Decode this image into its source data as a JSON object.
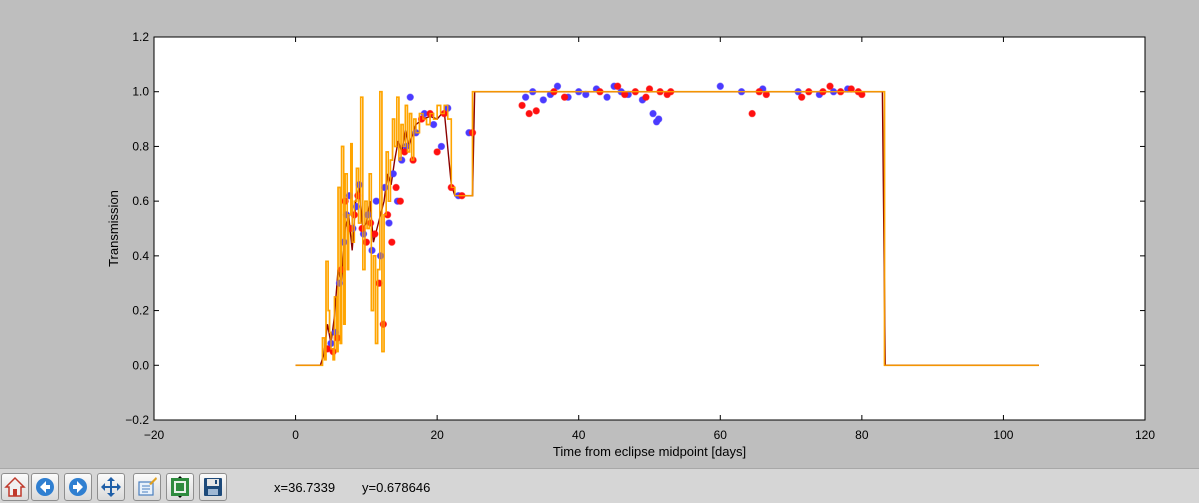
{
  "toolbar": {
    "buttons": [
      {
        "name": "home-button",
        "icon": "home-icon"
      },
      {
        "name": "back-button",
        "icon": "back-arrow-icon"
      },
      {
        "name": "forward-button",
        "icon": "forward-arrow-icon"
      },
      {
        "name": "pan-button",
        "icon": "pan-arrows-icon"
      },
      {
        "name": "zoom-button",
        "icon": "zoom-rectangle-icon"
      },
      {
        "name": "subplots-button",
        "icon": "subplots-icon"
      },
      {
        "name": "save-button",
        "icon": "floppy-disk-icon"
      }
    ],
    "x_readout": "x=36.7339",
    "y_readout": "y=0.678646"
  },
  "chart_data": {
    "type": "line",
    "title": "",
    "xlabel": "Time from eclipse midpoint [days]",
    "ylabel": "Transmission",
    "xlim": [
      -20,
      120
    ],
    "ylim": [
      -0.2,
      1.2
    ],
    "xticks": [
      "−20",
      "0",
      "20",
      "40",
      "60",
      "80",
      "100",
      "120"
    ],
    "yticks": [
      "−0.2",
      "0.0",
      "0.2",
      "0.4",
      "0.6",
      "0.8",
      "1.0",
      "1.2"
    ],
    "grid": false,
    "legend": "none",
    "colors": {
      "model_line": "#ffa500",
      "model_fit": "#8b0000",
      "blue_points": "#4b3bff",
      "red_points": "#ff1010",
      "axes": "#000000",
      "background": "#ffffff"
    },
    "series": [
      {
        "color": "#ffa500",
        "style": "step-line",
        "x": [
          0,
          3.5,
          3.8,
          4.1,
          4.3,
          4.6,
          4.8,
          5.0,
          5.3,
          5.5,
          5.8,
          6.0,
          6.3,
          6.5,
          6.8,
          7.0,
          7.3,
          7.5,
          7.8,
          8.0,
          8.3,
          8.6,
          8.9,
          9.2,
          9.5,
          9.8,
          10.1,
          10.4,
          10.7,
          11.0,
          11.3,
          11.6,
          11.9,
          12.2,
          12.5,
          12.8,
          13.1,
          13.4,
          13.7,
          14.0,
          14.3,
          14.6,
          14.9,
          15.2,
          15.5,
          15.8,
          16.1,
          16.4,
          16.7,
          17.0,
          17.5,
          18.0,
          18.5,
          19.0,
          19.5,
          20.0,
          20.5,
          21.0,
          21.5,
          22.0,
          22.5,
          23.0,
          23.5,
          24.0,
          24.5,
          25.0,
          25.3,
          26.0,
          83.0,
          83.2,
          105.0
        ],
        "y": [
          0.0,
          0.0,
          0.1,
          0.02,
          0.38,
          0.2,
          0.12,
          0.06,
          0.02,
          0.25,
          0.05,
          0.65,
          0.08,
          0.8,
          0.15,
          0.7,
          0.35,
          0.55,
          0.81,
          0.45,
          0.6,
          0.72,
          0.52,
          0.98,
          0.35,
          0.6,
          0.5,
          0.7,
          0.2,
          0.4,
          0.08,
          0.35,
          1.0,
          0.05,
          0.55,
          0.78,
          0.6,
          0.75,
          0.9,
          0.8,
          0.98,
          0.75,
          0.88,
          0.8,
          0.95,
          0.78,
          0.92,
          0.75,
          0.9,
          0.85,
          0.92,
          0.9,
          0.88,
          0.92,
          0.9,
          0.95,
          0.92,
          0.95,
          0.9,
          0.65,
          0.62,
          0.62,
          0.62,
          0.62,
          0.62,
          1.0,
          1.0,
          1.0,
          1.0,
          0.0,
          0.0
        ]
      },
      {
        "color": "#8b0000",
        "style": "line",
        "x": [
          0,
          3.5,
          4.0,
          4.5,
          5.0,
          5.5,
          6.0,
          6.5,
          7.0,
          7.5,
          8.0,
          8.5,
          9.0,
          9.5,
          10.0,
          10.5,
          11.0,
          11.5,
          12.0,
          12.5,
          13.0,
          13.5,
          14.0,
          14.5,
          15.0,
          15.5,
          16.0,
          17.0,
          18.0,
          19.0,
          20.0,
          21.0,
          22.0,
          22.5,
          24.0,
          24.5,
          25.0,
          25.3,
          82.9,
          83.3,
          105.0
        ],
        "y": [
          0.0,
          0.0,
          0.04,
          0.15,
          0.08,
          0.18,
          0.35,
          0.3,
          0.5,
          0.55,
          0.42,
          0.6,
          0.65,
          0.5,
          0.52,
          0.6,
          0.45,
          0.5,
          0.55,
          0.6,
          0.7,
          0.66,
          0.75,
          0.82,
          0.78,
          0.86,
          0.8,
          0.88,
          0.9,
          0.91,
          0.9,
          0.93,
          0.66,
          0.62,
          0.62,
          0.62,
          0.62,
          1.0,
          1.0,
          0.0,
          0.0
        ]
      },
      {
        "color": "#4b3bff",
        "style": "points",
        "x": [
          5.0,
          5.6,
          6.2,
          6.8,
          7.2,
          7.6,
          8.1,
          8.6,
          9.0,
          9.6,
          10.2,
          10.8,
          11.4,
          12.0,
          12.6,
          13.2,
          13.8,
          14.4,
          15.0,
          15.6,
          16.2,
          17.0,
          18.2,
          19.5,
          20.6,
          21.5,
          23.0,
          24.5,
          32.5,
          33.5,
          35.0,
          36.0,
          37.0,
          38.5,
          40.0,
          41.0,
          42.5,
          44.0,
          45.0,
          46.0,
          47.0,
          49.0,
          50.5,
          51.0,
          51.3,
          60.0,
          63.0,
          66.0,
          71.0,
          74.0,
          76.0,
          78.0
        ],
        "y": [
          0.08,
          0.12,
          0.3,
          0.45,
          0.55,
          0.62,
          0.5,
          0.58,
          0.66,
          0.48,
          0.55,
          0.42,
          0.6,
          0.4,
          0.65,
          0.52,
          0.7,
          0.6,
          0.75,
          0.8,
          0.98,
          0.85,
          0.92,
          0.88,
          0.8,
          0.94,
          0.62,
          0.85,
          0.98,
          1.0,
          0.97,
          0.99,
          1.02,
          0.98,
          1.0,
          0.99,
          1.01,
          0.98,
          1.02,
          1.0,
          0.99,
          0.97,
          0.92,
          0.89,
          0.9,
          1.02,
          1.0,
          1.01,
          1.0,
          0.99,
          1.0,
          1.01
        ]
      },
      {
        "color": "#ff1010",
        "style": "points",
        "x": [
          4.5,
          5.3,
          5.9,
          6.5,
          7.0,
          7.7,
          8.3,
          8.8,
          9.4,
          10.0,
          10.6,
          11.2,
          11.8,
          12.4,
          13.0,
          13.6,
          14.2,
          14.8,
          15.4,
          16.6,
          17.8,
          19.0,
          20.0,
          21.0,
          22.0,
          23.5,
          25.0,
          32.0,
          33.0,
          34.0,
          36.5,
          38.0,
          43.0,
          45.5,
          46.5,
          48.0,
          49.5,
          50.0,
          51.5,
          52.5,
          53.0,
          64.5,
          65.5,
          66.5,
          71.5,
          72.5,
          74.5,
          75.5,
          77.0,
          78.5,
          79.5,
          80.0
        ],
        "y": [
          0.06,
          0.05,
          0.1,
          0.35,
          0.6,
          0.5,
          0.55,
          0.62,
          0.5,
          0.45,
          0.52,
          0.48,
          0.3,
          0.15,
          0.55,
          0.45,
          0.65,
          0.6,
          0.78,
          0.75,
          0.9,
          0.92,
          0.78,
          0.92,
          0.65,
          0.62,
          0.85,
          0.95,
          0.92,
          0.93,
          1.0,
          0.98,
          1.0,
          1.02,
          0.99,
          1.0,
          0.98,
          1.01,
          1.0,
          0.99,
          1.0,
          0.92,
          1.0,
          0.99,
          0.98,
          1.0,
          1.0,
          1.02,
          1.0,
          1.01,
          1.0,
          0.99
        ]
      }
    ]
  }
}
